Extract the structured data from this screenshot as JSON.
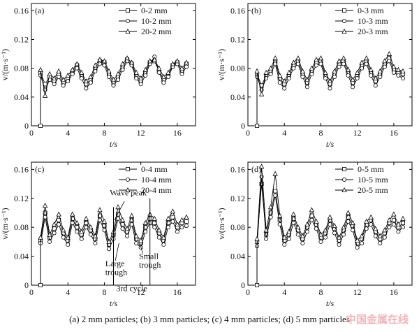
{
  "caption": "(a) 2 mm particles; (b) 3 mm particles; (c) 4 mm particles; (d) 5 mm particles",
  "watermark": "中国金属在线",
  "chart_data": [
    {
      "type": "line",
      "panel_label": "(a)",
      "xlabel": "t/s",
      "ylabel": "v/(m·s⁻¹)",
      "xlim": [
        0,
        18
      ],
      "ylim": [
        0,
        0.17
      ],
      "xticks": [
        0,
        4,
        8,
        12,
        16
      ],
      "yticks": [
        0,
        0.04,
        0.08,
        0.12,
        0.16
      ],
      "ytick_labels": [
        "0",
        "0.04",
        "0.08",
        "0.12",
        "0.16"
      ],
      "legend_position": "top-right",
      "x": [
        1.0,
        1.5,
        2.0,
        2.5,
        3.0,
        3.5,
        4.0,
        4.5,
        5.0,
        5.5,
        6.0,
        6.5,
        7.0,
        7.5,
        8.0,
        8.5,
        9.0,
        9.5,
        10.0,
        10.5,
        11.0,
        11.5,
        12.0,
        12.5,
        13.0,
        13.5,
        14.0,
        14.5,
        15.0,
        15.5,
        16.0,
        16.5,
        17.0
      ],
      "series": [
        {
          "name": "0-2 mm",
          "marker": "square",
          "values": [
            0.074,
            0.058,
            0.068,
            0.062,
            0.072,
            0.06,
            0.066,
            0.075,
            0.084,
            0.07,
            0.058,
            0.064,
            0.08,
            0.09,
            0.088,
            0.072,
            0.06,
            0.068,
            0.082,
            0.092,
            0.086,
            0.07,
            0.062,
            0.074,
            0.088,
            0.09,
            0.076,
            0.064,
            0.07,
            0.084,
            0.088,
            0.076,
            0.086
          ]
        },
        {
          "name": "10-2 mm",
          "marker": "circle",
          "values": [
            0.07,
            0.05,
            0.064,
            0.058,
            0.068,
            0.056,
            0.062,
            0.072,
            0.08,
            0.066,
            0.052,
            0.06,
            0.076,
            0.086,
            0.084,
            0.068,
            0.056,
            0.064,
            0.078,
            0.09,
            0.084,
            0.066,
            0.058,
            0.07,
            0.086,
            0.096,
            0.074,
            0.06,
            0.068,
            0.082,
            0.086,
            0.072,
            0.082
          ]
        },
        {
          "name": "20-2 mm",
          "marker": "triangle",
          "values": [
            0.078,
            0.042,
            0.072,
            0.066,
            0.076,
            0.064,
            0.07,
            0.078,
            0.086,
            0.074,
            0.062,
            0.068,
            0.084,
            0.092,
            0.09,
            0.076,
            0.064,
            0.072,
            0.086,
            0.094,
            0.088,
            0.074,
            0.066,
            0.078,
            0.09,
            0.092,
            0.08,
            0.068,
            0.074,
            0.086,
            0.09,
            0.08,
            0.088
          ]
        }
      ]
    },
    {
      "type": "line",
      "panel_label": "(b)",
      "xlabel": "t/s",
      "ylabel": "v/(m·s⁻¹)",
      "xlim": [
        0,
        18
      ],
      "ylim": [
        0,
        0.17
      ],
      "xticks": [
        0,
        4,
        8,
        12,
        16
      ],
      "yticks": [
        0,
        0.04,
        0.08,
        0.12,
        0.16
      ],
      "ytick_labels": [
        "0",
        "0.04",
        "0.08",
        "0.12",
        "0.16"
      ],
      "legend_position": "top-right",
      "x": [
        1.0,
        1.5,
        2.0,
        2.5,
        3.0,
        3.5,
        4.0,
        4.5,
        5.0,
        5.5,
        6.0,
        6.5,
        7.0,
        7.5,
        8.0,
        8.5,
        9.0,
        9.5,
        10.0,
        10.5,
        11.0,
        11.5,
        12.0,
        12.5,
        13.0,
        13.5,
        14.0,
        14.5,
        15.0,
        15.5,
        16.0,
        16.5,
        17.0
      ],
      "series": [
        {
          "name": "0-3 mm",
          "marker": "square",
          "values": [
            0.072,
            0.056,
            0.07,
            0.076,
            0.09,
            0.066,
            0.058,
            0.07,
            0.084,
            0.09,
            0.072,
            0.06,
            0.076,
            0.088,
            0.09,
            0.07,
            0.058,
            0.072,
            0.086,
            0.09,
            0.074,
            0.06,
            0.07,
            0.084,
            0.09,
            0.074,
            0.062,
            0.072,
            0.086,
            0.094,
            0.078,
            0.074,
            0.072
          ]
        },
        {
          "name": "10-3 mm",
          "marker": "circle",
          "values": [
            0.068,
            0.05,
            0.066,
            0.072,
            0.086,
            0.06,
            0.052,
            0.066,
            0.08,
            0.086,
            0.068,
            0.054,
            0.072,
            0.084,
            0.086,
            0.066,
            0.052,
            0.068,
            0.082,
            0.086,
            0.07,
            0.054,
            0.066,
            0.08,
            0.086,
            0.07,
            0.056,
            0.068,
            0.082,
            0.09,
            0.074,
            0.07,
            0.066
          ]
        },
        {
          "name": "20-3 mm",
          "marker": "triangle",
          "values": [
            0.076,
            0.044,
            0.074,
            0.08,
            0.094,
            0.07,
            0.062,
            0.074,
            0.088,
            0.094,
            0.076,
            0.064,
            0.08,
            0.092,
            0.094,
            0.074,
            0.062,
            0.076,
            0.09,
            0.094,
            0.078,
            0.064,
            0.074,
            0.088,
            0.094,
            0.078,
            0.066,
            0.076,
            0.09,
            0.1,
            0.082,
            0.078,
            0.076
          ]
        }
      ]
    },
    {
      "type": "line",
      "panel_label": "(c)",
      "xlabel": "t/s",
      "ylabel": "v/(m·s⁻¹)",
      "xlim": [
        0,
        18
      ],
      "ylim": [
        0,
        0.17
      ],
      "xticks": [
        0,
        4,
        8,
        12,
        16
      ],
      "yticks": [
        0,
        0.04,
        0.08,
        0.12,
        0.16
      ],
      "ytick_labels": [
        "0",
        "0.04",
        "0.08",
        "0.12",
        "0.16"
      ],
      "legend_position": "top-right",
      "annotations": [
        "Wave peak",
        "Large trough",
        "Small trough",
        "3rd cycle"
      ],
      "x": [
        1.0,
        1.5,
        2.0,
        2.5,
        3.0,
        3.5,
        4.0,
        4.5,
        5.0,
        5.5,
        6.0,
        6.5,
        7.0,
        7.5,
        8.0,
        8.5,
        9.0,
        9.5,
        10.0,
        10.5,
        11.0,
        11.5,
        12.0,
        12.5,
        13.0,
        13.5,
        14.0,
        14.5,
        15.0,
        15.5,
        16.0,
        16.5,
        17.0
      ],
      "series": [
        {
          "name": "0-4 mm",
          "marker": "square",
          "values": [
            0.062,
            0.1,
            0.066,
            0.078,
            0.09,
            0.072,
            0.062,
            0.092,
            0.08,
            0.07,
            0.086,
            0.076,
            0.064,
            0.096,
            0.082,
            0.056,
            0.07,
            0.098,
            0.084,
            0.074,
            0.09,
            0.064,
            0.058,
            0.08,
            0.092,
            0.086,
            0.072,
            0.062,
            0.086,
            0.094,
            0.08,
            0.086,
            0.088
          ]
        },
        {
          "name": "10-4 mm",
          "marker": "circle",
          "values": [
            0.058,
            0.094,
            0.06,
            0.072,
            0.084,
            0.066,
            0.056,
            0.086,
            0.074,
            0.064,
            0.08,
            0.07,
            0.058,
            0.09,
            0.076,
            0.05,
            0.064,
            0.092,
            0.078,
            0.068,
            0.084,
            0.058,
            0.052,
            0.074,
            0.086,
            0.08,
            0.066,
            0.056,
            0.08,
            0.088,
            0.074,
            0.08,
            0.082
          ]
        },
        {
          "name": "20-4 mm",
          "marker": "triangle",
          "values": [
            0.066,
            0.11,
            0.07,
            0.084,
            0.098,
            0.076,
            0.066,
            0.098,
            0.086,
            0.074,
            0.092,
            0.08,
            0.068,
            0.104,
            0.088,
            0.06,
            0.074,
            0.108,
            0.09,
            0.078,
            0.096,
            0.068,
            0.062,
            0.086,
            0.098,
            0.092,
            0.076,
            0.066,
            0.092,
            0.102,
            0.084,
            0.09,
            0.094
          ]
        }
      ]
    },
    {
      "type": "line",
      "panel_label": "(d)",
      "xlabel": "t/s",
      "ylabel": "v/(m·s⁻¹)",
      "xlim": [
        0,
        18
      ],
      "ylim": [
        0,
        0.17
      ],
      "xticks": [
        0,
        4,
        8,
        12,
        16
      ],
      "yticks": [
        0,
        0.04,
        0.08,
        0.12,
        0.16
      ],
      "ytick_labels": [
        "0",
        "0.04",
        "0.08",
        "0.12",
        "0.16"
      ],
      "legend_position": "top-right",
      "x": [
        1.0,
        1.5,
        2.0,
        2.5,
        3.0,
        3.5,
        4.0,
        4.5,
        5.0,
        5.5,
        6.0,
        6.5,
        7.0,
        7.5,
        8.0,
        8.5,
        9.0,
        9.5,
        10.0,
        10.5,
        11.0,
        11.5,
        12.0,
        12.5,
        13.0,
        13.5,
        14.0,
        14.5,
        15.0,
        15.5,
        16.0,
        16.5,
        17.0
      ],
      "series": [
        {
          "name": "0-5 mm",
          "marker": "square",
          "values": [
            0.06,
            0.14,
            0.07,
            0.1,
            0.13,
            0.09,
            0.062,
            0.07,
            0.092,
            0.076,
            0.064,
            0.08,
            0.096,
            0.084,
            0.066,
            0.072,
            0.09,
            0.078,
            0.062,
            0.076,
            0.094,
            0.082,
            0.058,
            0.064,
            0.084,
            0.09,
            0.074,
            0.064,
            0.072,
            0.086,
            0.09,
            0.08,
            0.086
          ]
        },
        {
          "name": "10-5 mm",
          "marker": "circle",
          "values": [
            0.054,
            0.15,
            0.064,
            0.094,
            0.124,
            0.084,
            0.056,
            0.064,
            0.086,
            0.07,
            0.058,
            0.074,
            0.09,
            0.078,
            0.06,
            0.066,
            0.084,
            0.072,
            0.056,
            0.07,
            0.088,
            0.076,
            0.052,
            0.058,
            0.078,
            0.084,
            0.068,
            0.058,
            0.066,
            0.08,
            0.084,
            0.074,
            0.08
          ]
        },
        {
          "name": "20-5 mm",
          "marker": "triangle",
          "values": [
            0.064,
            0.164,
            0.076,
            0.108,
            0.154,
            0.096,
            0.066,
            0.074,
            0.098,
            0.08,
            0.068,
            0.084,
            0.104,
            0.088,
            0.07,
            0.076,
            0.094,
            0.082,
            0.066,
            0.08,
            0.1,
            0.086,
            0.062,
            0.068,
            0.088,
            0.094,
            0.078,
            0.068,
            0.076,
            0.09,
            0.098,
            0.084,
            0.092
          ]
        }
      ]
    }
  ]
}
